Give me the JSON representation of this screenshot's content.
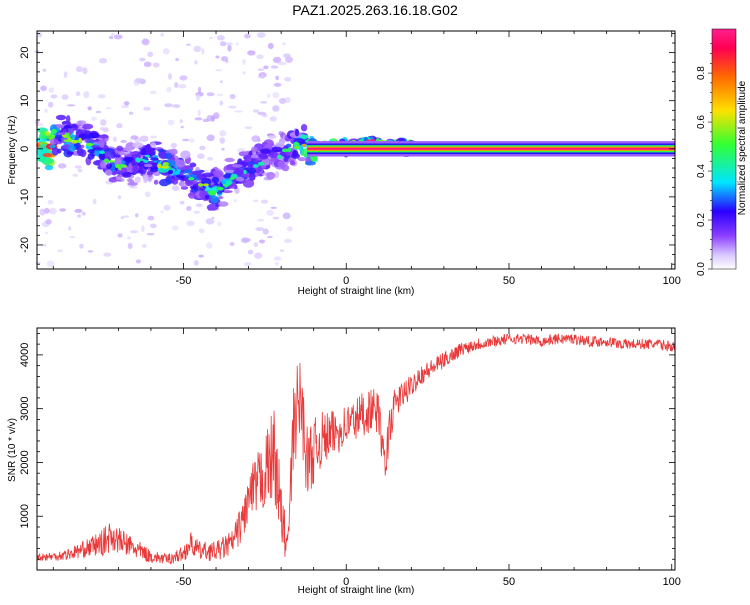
{
  "title": "PAZ1.2025.263.16.18.G02",
  "colors": {
    "signal_line": "#e83a3a",
    "spectrogram_ramp": [
      "#ffffff",
      "#d9c6ff",
      "#8a3dff",
      "#2a00ff",
      "#00e5ff",
      "#33ff33",
      "#ffe000",
      "#ff6a00",
      "#ff0050",
      "#ff1f8e"
    ]
  },
  "chart_data": [
    {
      "type": "heatmap",
      "name": "spectrogram",
      "xlabel": "Height of straight line (km)",
      "ylabel": "Frequency (Hz)",
      "xlim": [
        -95,
        101
      ],
      "ylim": [
        -25,
        24.5
      ],
      "xticks": [
        -50,
        0,
        50,
        100
      ],
      "xtick_labels": [
        "-50",
        "0",
        "50",
        "100"
      ],
      "yticks": [
        20,
        10,
        0,
        -10,
        -20
      ],
      "ytick_labels": [
        "20",
        "10",
        "0",
        "-10",
        "-20"
      ],
      "colorbar": {
        "label": "Normalized spectral amplitude",
        "range": [
          0,
          0.98
        ],
        "ticks": [
          0.0,
          0.2,
          0.4,
          0.6,
          0.8
        ],
        "tick_labels": [
          "0.0",
          "0.2",
          "0.4",
          "0.6",
          "0.8"
        ]
      },
      "ridge": [
        {
          "x": -90,
          "f": 3,
          "amp": 0.35
        },
        {
          "x": -85,
          "f": 2,
          "amp": 0.4
        },
        {
          "x": -80,
          "f": 2,
          "amp": 0.4
        },
        {
          "x": -75,
          "f": -1,
          "amp": 0.3
        },
        {
          "x": -70,
          "f": -4,
          "amp": 0.35
        },
        {
          "x": -65,
          "f": -3,
          "amp": 0.25
        },
        {
          "x": -60,
          "f": -2,
          "amp": 0.3
        },
        {
          "x": -55,
          "f": -4,
          "amp": 0.45
        },
        {
          "x": -50,
          "f": -5,
          "amp": 0.3
        },
        {
          "x": -45,
          "f": -7,
          "amp": 0.35
        },
        {
          "x": -40,
          "f": -9,
          "amp": 0.4
        },
        {
          "x": -35,
          "f": -6,
          "amp": 0.3
        },
        {
          "x": -30,
          "f": -4,
          "amp": 0.3
        },
        {
          "x": -25,
          "f": -2,
          "amp": 0.25
        },
        {
          "x": -20,
          "f": -1,
          "amp": 0.25
        },
        {
          "x": -15,
          "f": 1,
          "amp": 0.35
        },
        {
          "x": -10,
          "f": 0.5,
          "amp": 0.7
        },
        {
          "x": 0,
          "f": 0.3,
          "amp": 0.8
        },
        {
          "x": 8,
          "f": 1,
          "amp": 0.85
        },
        {
          "x": 15,
          "f": 0.5,
          "amp": 0.8
        },
        {
          "x": 25,
          "f": 0,
          "amp": 0.95
        },
        {
          "x": 50,
          "f": 0,
          "amp": 0.98
        },
        {
          "x": 101,
          "f": 0,
          "amp": 0.98
        }
      ]
    },
    {
      "type": "line",
      "name": "snr",
      "xlabel": "Height of straight line (km)",
      "ylabel": "SNR (10 * v/v)",
      "xlim": [
        -95,
        101
      ],
      "ylim": [
        0,
        4500
      ],
      "xticks": [
        -50,
        0,
        50,
        100
      ],
      "xtick_labels": [
        "-50",
        "0",
        "50",
        "100"
      ],
      "yticks": [
        1000,
        2000,
        3000,
        4000
      ],
      "ytick_labels": [
        "1000",
        "2000",
        "3000",
        "4000"
      ],
      "series": [
        {
          "name": "SNR",
          "x": [
            -95,
            -90,
            -85,
            -80,
            -75,
            -72,
            -70,
            -65,
            -60,
            -55,
            -50,
            -48,
            -45,
            -40,
            -35,
            -32,
            -30,
            -25,
            -22,
            -20,
            -18,
            -16,
            -14,
            -12,
            -10,
            -8,
            -5,
            -2,
            0,
            3,
            5,
            8,
            10,
            12,
            13,
            15,
            18,
            20,
            22,
            25,
            30,
            35,
            40,
            45,
            50,
            55,
            60,
            65,
            70,
            75,
            80,
            85,
            90,
            95,
            101
          ],
          "y": [
            250,
            250,
            300,
            400,
            500,
            650,
            550,
            400,
            250,
            200,
            300,
            500,
            350,
            350,
            500,
            900,
            1300,
            1800,
            2200,
            1000,
            400,
            2800,
            3200,
            2000,
            2200,
            2400,
            2500,
            2600,
            2700,
            2800,
            2900,
            3000,
            2900,
            1800,
            2600,
            3100,
            3300,
            3400,
            3600,
            3700,
            3900,
            4100,
            4200,
            4250,
            4300,
            4300,
            4250,
            4300,
            4300,
            4250,
            4250,
            4200,
            4200,
            4200,
            4150
          ],
          "noise": [
            80,
            80,
            120,
            160,
            250,
            300,
            250,
            200,
            120,
            100,
            150,
            220,
            180,
            180,
            250,
            350,
            500,
            700,
            900,
            600,
            300,
            900,
            800,
            700,
            600,
            550,
            450,
            420,
            400,
            420,
            450,
            400,
            380,
            350,
            400,
            300,
            250,
            220,
            200,
            180,
            150,
            130,
            120,
            110,
            100,
            100,
            100,
            100,
            100,
            100,
            100,
            100,
            100,
            100,
            100
          ]
        }
      ]
    }
  ]
}
